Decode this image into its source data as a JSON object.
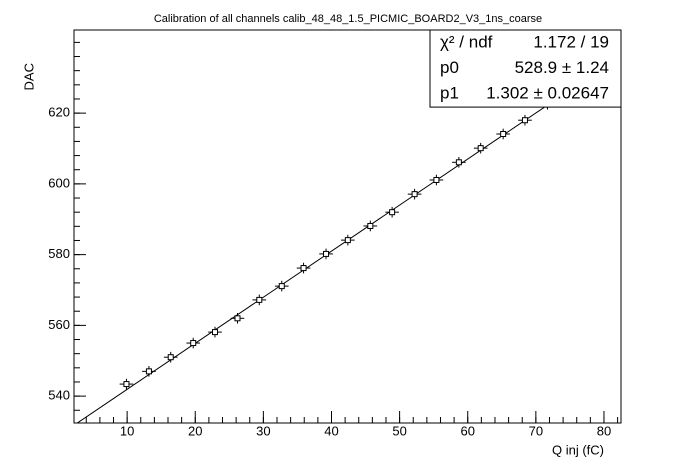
{
  "chart_data": {
    "type": "scatter",
    "title": "Calibration of all channels calib_48_48_1.5_PICMIC_BOARD2_V3_1ns_coarse",
    "x_label": "Q inj (fC)",
    "y_label": "DAC",
    "x": [
      9.9,
      13.2,
      16.4,
      19.7,
      22.9,
      26.2,
      29.4,
      32.7,
      35.9,
      39.2,
      42.4,
      45.7,
      48.9,
      52.2,
      55.4,
      58.7,
      61.9,
      65.2,
      68.4,
      71.7
    ],
    "x_errors": [
      1,
      1,
      1,
      1,
      1,
      1,
      1,
      1,
      1,
      1,
      1,
      1,
      1,
      1,
      1,
      1,
      1,
      1,
      1,
      1
    ],
    "values": [
      543.4,
      547,
      551,
      555,
      558.1,
      562,
      567.2,
      571.1,
      576.2,
      580.2,
      584.1,
      588.1,
      592,
      597.1,
      601.1,
      606.1,
      610.1,
      614.1,
      618,
      622.5
    ],
    "errors": [
      1.5,
      1.5,
      1.5,
      1.5,
      1.5,
      1.5,
      1.5,
      1.5,
      1.5,
      1.5,
      1.5,
      1.5,
      1.5,
      1.5,
      1.5,
      1.5,
      1.5,
      1.5,
      1.5,
      1.5
    ],
    "color": "#000000",
    "xlim": [
      2.2,
      82.5
    ],
    "ylim": [
      532.4,
      643.5
    ],
    "xticks": [
      10,
      20,
      30,
      40,
      50,
      60,
      70,
      80
    ],
    "yticks": [
      540,
      560,
      580,
      600,
      620
    ],
    "stats": [
      {
        "name": "χ² / ndf",
        "label": "1.172 / 19"
      },
      {
        "name": "p0",
        "value": 528.9,
        "error": 1.24,
        "label": "528.9 ±  1.24"
      },
      {
        "name": "p1",
        "value": 1.302,
        "error": 0.02647,
        "label": "1.302 ± 0.02647"
      }
    ]
  }
}
